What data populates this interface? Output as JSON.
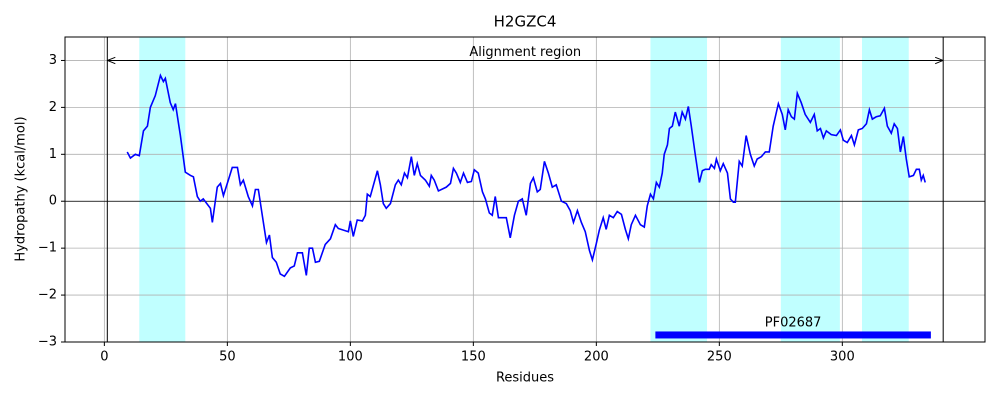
{
  "chart_data": {
    "type": "line",
    "title": "H2GZC4",
    "x_label": "Residues",
    "y_label": "Hydropathy (kcal/mol)",
    "x": [
      9.3,
      10.6,
      12.6,
      14.2,
      15.9,
      17.5,
      18.7,
      20.7,
      22.8,
      24,
      24.8,
      26.8,
      28,
      28.9,
      30.9,
      32.9,
      35,
      36.2,
      37.8,
      39,
      40.2,
      43.1,
      43.9,
      45.9,
      47.2,
      48.4,
      50.4,
      52,
      54.1,
      55.3,
      56.5,
      58.5,
      60.2,
      61.4,
      62.6,
      64.2,
      65.9,
      67.1,
      68.3,
      69.9,
      71.5,
      73.2,
      75.6,
      77.2,
      78.5,
      80.5,
      82.1,
      83.3,
      84.6,
      85.8,
      87.4,
      89.8,
      91.9,
      93.9,
      95.1,
      99.2,
      100,
      101.2,
      102.8,
      104.9,
      106.1,
      106.9,
      108.1,
      111,
      112.2,
      113.4,
      114.6,
      116.3,
      118.3,
      119.5,
      120.7,
      122,
      123.2,
      124.8,
      126,
      127.2,
      128.5,
      130.5,
      132.1,
      132.9,
      134.1,
      135.8,
      139,
      140.7,
      141.9,
      143.1,
      144.7,
      146,
      147.6,
      149.2,
      150.4,
      152,
      153.7,
      154.9,
      156.5,
      157.7,
      158.9,
      160.2,
      163.4,
      165,
      166.7,
      168.3,
      169.9,
      171.5,
      173.2,
      174.4,
      176,
      177.2,
      178.9,
      180.5,
      182.1,
      183.7,
      185.8,
      187.8,
      189.4,
      190.7,
      192.3,
      193.9,
      195.5,
      197.2,
      198.4,
      200,
      201.2,
      202.8,
      204,
      205.3,
      206.9,
      208.5,
      210.2,
      211.8,
      213,
      214.2,
      215.9,
      217.9,
      219.5,
      220.7,
      222,
      223.2,
      224.4,
      225.6,
      226.8,
      227.6,
      228.9,
      229.7,
      230.9,
      232.1,
      233.7,
      234.9,
      236.2,
      237.4,
      238.6,
      240.2,
      241.9,
      243.1,
      244.3,
      245.9,
      246.7,
      248,
      248.8,
      250.4,
      251.6,
      253.3,
      254.5,
      255.7,
      256.5,
      258.1,
      259.3,
      260.9,
      262.6,
      264.2,
      265.4,
      267.1,
      268.7,
      270.3,
      271.9,
      274,
      275.6,
      276.8,
      278,
      279.3,
      280.5,
      281.7,
      283.3,
      284.9,
      287,
      288.6,
      289.8,
      291.1,
      292.3,
      293.5,
      295.5,
      297.6,
      299.2,
      300.4,
      302,
      303.7,
      304.9,
      306.5,
      308.1,
      309.8,
      311,
      312.2,
      313.8,
      315.4,
      317.1,
      318.3,
      319.9,
      321.1,
      322.4,
      323.6,
      324.8,
      326,
      327.2,
      328.9,
      330.1,
      331.3,
      332.1,
      332.9,
      333.7
    ],
    "series": [
      {
        "color": "#0000ff",
        "values": [
          1.05,
          0.92,
          1.0,
          0.97,
          1.5,
          1.6,
          2.0,
          2.25,
          2.68,
          2.55,
          2.62,
          2.1,
          1.95,
          2.08,
          1.4,
          0.62,
          0.55,
          0.52,
          0.1,
          0.0,
          0.05,
          -0.15,
          -0.45,
          0.3,
          0.38,
          0.12,
          0.45,
          0.72,
          0.72,
          0.35,
          0.45,
          0.1,
          -0.1,
          0.25,
          0.25,
          -0.3,
          -0.88,
          -0.72,
          -1.2,
          -1.3,
          -1.55,
          -1.6,
          -1.42,
          -1.38,
          -1.1,
          -1.1,
          -1.58,
          -1.0,
          -1.0,
          -1.3,
          -1.28,
          -0.92,
          -0.8,
          -0.5,
          -0.58,
          -0.65,
          -0.42,
          -0.75,
          -0.4,
          -0.42,
          -0.3,
          0.15,
          0.1,
          0.65,
          0.35,
          -0.05,
          -0.15,
          -0.05,
          0.35,
          0.45,
          0.35,
          0.6,
          0.5,
          0.95,
          0.55,
          0.8,
          0.55,
          0.45,
          0.32,
          0.55,
          0.45,
          0.22,
          0.3,
          0.38,
          0.7,
          0.6,
          0.4,
          0.6,
          0.4,
          0.42,
          0.67,
          0.6,
          0.2,
          0.05,
          -0.25,
          -0.3,
          0.1,
          -0.35,
          -0.35,
          -0.78,
          -0.3,
          0.0,
          0.05,
          -0.3,
          0.38,
          0.5,
          0.2,
          0.25,
          0.85,
          0.6,
          0.3,
          0.35,
          0.0,
          -0.05,
          -0.2,
          -0.45,
          -0.2,
          -0.45,
          -0.65,
          -1.05,
          -1.25,
          -0.9,
          -0.62,
          -0.35,
          -0.6,
          -0.3,
          -0.35,
          -0.22,
          -0.28,
          -0.6,
          -0.8,
          -0.5,
          -0.3,
          -0.5,
          -0.55,
          -0.1,
          0.15,
          0.05,
          0.4,
          0.3,
          0.6,
          1.0,
          1.2,
          1.55,
          1.6,
          1.9,
          1.6,
          1.9,
          1.75,
          2.02,
          1.6,
          1.0,
          0.4,
          0.65,
          0.68,
          0.68,
          0.78,
          0.7,
          0.9,
          0.65,
          0.8,
          0.6,
          0.05,
          -0.02,
          -0.02,
          0.85,
          0.75,
          1.4,
          1.0,
          0.75,
          0.9,
          0.95,
          1.05,
          1.05,
          1.6,
          2.08,
          1.85,
          1.52,
          1.95,
          1.8,
          1.75,
          2.3,
          2.1,
          1.85,
          1.68,
          1.85,
          1.5,
          1.55,
          1.35,
          1.5,
          1.42,
          1.4,
          1.52,
          1.3,
          1.25,
          1.4,
          1.2,
          1.52,
          1.55,
          1.65,
          1.95,
          1.75,
          1.8,
          1.82,
          1.98,
          1.6,
          1.45,
          1.65,
          1.55,
          1.05,
          1.38,
          0.9,
          0.52,
          0.55,
          0.68,
          0.68,
          0.45,
          0.55,
          0.4
        ]
      }
    ],
    "xlim": [
      -16,
      358
    ],
    "ylim": [
      -3,
      3.5
    ],
    "xticks": [
      0,
      50,
      100,
      150,
      200,
      250,
      300
    ],
    "yticks": [
      {
        "value": -3,
        "label": "−3"
      },
      {
        "value": -2,
        "label": "−2"
      },
      {
        "value": -1,
        "label": "−1"
      },
      0,
      1,
      2,
      3
    ],
    "grid": true,
    "hline": 0,
    "regions": [
      {
        "start": 14.2,
        "end": 32.9,
        "color": "#c0ffff"
      },
      {
        "start": 222,
        "end": 245,
        "color": "#c0ffff"
      },
      {
        "start": 275,
        "end": 299,
        "color": "#c0ffff"
      },
      {
        "start": 308,
        "end": 327,
        "color": "#c0ffff"
      }
    ],
    "vlines": [
      1.2,
      341
    ],
    "annotation": {
      "text": "Alignment region",
      "start": 1.2,
      "end": 341,
      "y": 3
    },
    "domain": {
      "name": "PF02687",
      "start": 224,
      "end": 336,
      "y": -2.85,
      "color": "#0000ff"
    }
  }
}
